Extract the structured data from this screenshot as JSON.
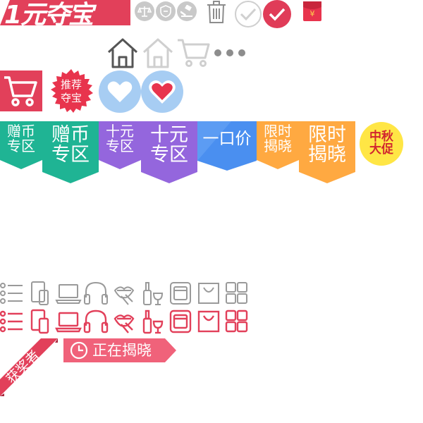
{
  "colors": {
    "brand_red": "#e2405a",
    "gray": "#8d8d8d",
    "light_gray": "#d0d0d0",
    "teal": "#1fb494",
    "purple": "#9466dd",
    "blue": "#4a8ff0",
    "orange": "#ffa941",
    "light_blue": "#a7cdf3",
    "yellow": "#ffe645",
    "pink": "#f0627a"
  },
  "logo": {
    "text": "1元夺宝"
  },
  "top_icons": [
    "scale-icon",
    "shield-icon",
    "gavel-icon",
    "trash-icon",
    "check-circle-gray-icon",
    "check-circle-red-icon",
    "red-envelope-icon"
  ],
  "red_envelope": {
    "symbol": "¥"
  },
  "nav_icons": [
    "home-outline-dark-icon",
    "home-outline-light-icon",
    "cart-outline-light-icon",
    "more-dots-icon"
  ],
  "badge_recommend": {
    "line1": "推荐",
    "line2": "夺宝"
  },
  "ribbons": [
    {
      "line1": "赠币",
      "line2": "专区"
    },
    {
      "line1": "赠币",
      "line2": "专区"
    },
    {
      "line1": "十元",
      "line2": "专区"
    },
    {
      "line1": "十元",
      "line2": "专区"
    },
    {
      "line1": "一口价",
      "line2": ""
    },
    {
      "line1": "限时",
      "line2": "揭晓"
    },
    {
      "line1": "限时",
      "line2": "揭晓"
    }
  ],
  "mid_autumn": {
    "line1": "中秋",
    "line2": "大促"
  },
  "category_icons": [
    "list-icon",
    "phone-tablet-icon",
    "laptop-icon",
    "headphones-icon",
    "lips-icon",
    "wine-icon",
    "appliance-icon",
    "shopping-bag-icon",
    "grid-icon"
  ],
  "winner_tag": {
    "text": "获奖者"
  },
  "reveal_tag": {
    "text": "正在揭晓"
  }
}
